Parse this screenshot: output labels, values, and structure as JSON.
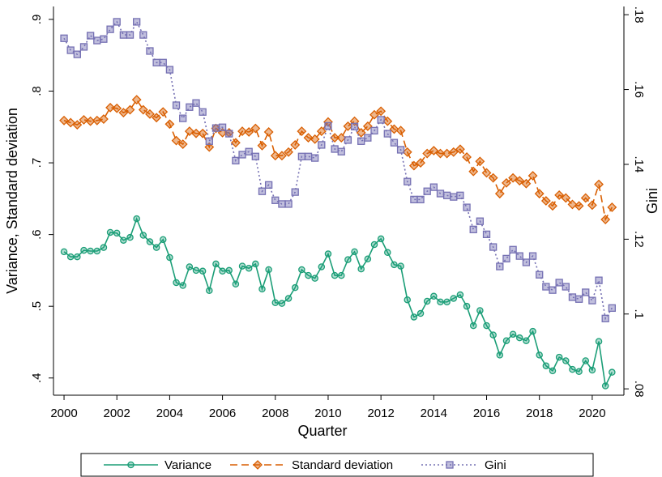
{
  "chart_data": {
    "type": "line",
    "x_label": "Quarter",
    "y_label": "Variance, Standard deviation",
    "y2_label": "Gini",
    "x": [
      2000,
      2000.25,
      2000.5,
      2000.75,
      2001,
      2001.25,
      2001.5,
      2001.75,
      2002,
      2002.25,
      2002.5,
      2002.75,
      2003,
      2003.25,
      2003.5,
      2003.75,
      2004,
      2004.25,
      2004.5,
      2004.75,
      2005,
      2005.25,
      2005.5,
      2005.75,
      2006,
      2006.25,
      2006.5,
      2006.75,
      2007,
      2007.25,
      2007.5,
      2007.75,
      2008,
      2008.25,
      2008.5,
      2008.75,
      2009,
      2009.25,
      2009.5,
      2009.75,
      2010,
      2010.25,
      2010.5,
      2010.75,
      2011,
      2011.25,
      2011.5,
      2011.75,
      2012,
      2012.25,
      2012.5,
      2012.75,
      2013,
      2013.25,
      2013.5,
      2013.75,
      2014,
      2014.25,
      2014.5,
      2014.75,
      2015,
      2015.25,
      2015.5,
      2015.75,
      2016,
      2016.25,
      2016.5,
      2016.75,
      2017,
      2017.25,
      2017.5,
      2017.75,
      2018,
      2018.25,
      2018.5,
      2018.75,
      2019,
      2019.25,
      2019.5,
      2019.75,
      2020,
      2020.25,
      2020.5,
      2020.75
    ],
    "series": [
      {
        "name": "Variance",
        "color": "#1b9e77",
        "marker": "circle",
        "dash": "solid",
        "values": [
          0.576,
          0.569,
          0.569,
          0.578,
          0.577,
          0.577,
          0.582,
          0.603,
          0.602,
          0.592,
          0.596,
          0.622,
          0.599,
          0.59,
          0.582,
          0.593,
          0.568,
          0.533,
          0.529,
          0.555,
          0.55,
          0.549,
          0.522,
          0.559,
          0.549,
          0.55,
          0.531,
          0.556,
          0.553,
          0.559,
          0.524,
          0.551,
          0.505,
          0.504,
          0.511,
          0.526,
          0.551,
          0.543,
          0.539,
          0.555,
          0.573,
          0.543,
          0.543,
          0.565,
          0.576,
          0.552,
          0.566,
          0.586,
          0.594,
          0.575,
          0.558,
          0.556,
          0.509,
          0.485,
          0.49,
          0.507,
          0.514,
          0.506,
          0.506,
          0.511,
          0.516,
          0.5,
          0.473,
          0.494,
          0.473,
          0.46,
          0.432,
          0.452,
          0.461,
          0.456,
          0.452,
          0.465,
          0.432,
          0.417,
          0.41,
          0.429,
          0.424,
          0.412,
          0.409,
          0.424,
          0.411,
          0.451,
          0.389,
          0.408
        ]
      },
      {
        "name": "Standard deviation",
        "color": "#d95f02",
        "marker": "diamond",
        "dash": "dashed",
        "values": [
          0.759,
          0.756,
          0.753,
          0.76,
          0.758,
          0.759,
          0.761,
          0.777,
          0.776,
          0.77,
          0.774,
          0.788,
          0.774,
          0.768,
          0.763,
          0.771,
          0.754,
          0.731,
          0.726,
          0.744,
          0.741,
          0.741,
          0.722,
          0.748,
          0.742,
          0.742,
          0.728,
          0.744,
          0.743,
          0.748,
          0.724,
          0.743,
          0.71,
          0.71,
          0.715,
          0.725,
          0.744,
          0.735,
          0.733,
          0.744,
          0.757,
          0.735,
          0.735,
          0.751,
          0.758,
          0.742,
          0.751,
          0.767,
          0.772,
          0.758,
          0.747,
          0.745,
          0.715,
          0.696,
          0.7,
          0.713,
          0.717,
          0.713,
          0.713,
          0.715,
          0.719,
          0.708,
          0.688,
          0.702,
          0.686,
          0.679,
          0.657,
          0.672,
          0.679,
          0.675,
          0.671,
          0.682,
          0.657,
          0.647,
          0.64,
          0.655,
          0.651,
          0.642,
          0.64,
          0.651,
          0.641,
          0.67,
          0.621,
          0.638
        ]
      },
      {
        "name": "Gini",
        "color": "#7570b3",
        "marker": "square",
        "dash": "dotted",
        "axis": "y2",
        "values": [
          0.1737,
          0.1705,
          0.1694,
          0.1714,
          0.1744,
          0.1731,
          0.1735,
          0.1761,
          0.1781,
          0.1746,
          0.1746,
          0.1781,
          0.1746,
          0.1703,
          0.1672,
          0.1672,
          0.1653,
          0.1558,
          0.1523,
          0.1553,
          0.1564,
          0.154,
          0.1462,
          0.1497,
          0.1499,
          0.1482,
          0.141,
          0.1426,
          0.1434,
          0.1421,
          0.1328,
          0.1345,
          0.1304,
          0.1294,
          0.1294,
          0.1326,
          0.1421,
          0.1421,
          0.1417,
          0.1452,
          0.1503,
          0.1441,
          0.1434,
          0.1465,
          0.1501,
          0.1462,
          0.1471,
          0.149,
          0.1519,
          0.1482,
          0.1458,
          0.1439,
          0.1354,
          0.1306,
          0.1306,
          0.1328,
          0.1339,
          0.1322,
          0.1317,
          0.1313,
          0.1317,
          0.1285,
          0.1226,
          0.1248,
          0.1213,
          0.1179,
          0.1127,
          0.1148,
          0.1172,
          0.1155,
          0.1138,
          0.1155,
          0.1105,
          0.1073,
          0.1064,
          0.1084,
          0.1073,
          0.1045,
          0.104,
          0.1058,
          0.1036,
          0.109,
          0.0988,
          0.1016
        ]
      }
    ],
    "xlim": [
      1999.6,
      2021.2
    ],
    "xticks": [
      2000,
      2002,
      2004,
      2006,
      2008,
      2010,
      2012,
      2014,
      2016,
      2018,
      2020
    ],
    "ylim": [
      0.376,
      0.918
    ],
    "yticks": [
      {
        "value": 0.4,
        "label": ".4"
      },
      {
        "value": 0.5,
        "label": ".5"
      },
      {
        "value": 0.6,
        "label": ".6"
      },
      {
        "value": 0.7,
        "label": ".7"
      },
      {
        "value": 0.8,
        "label": ".8"
      },
      {
        "value": 0.9,
        "label": ".9"
      }
    ],
    "y2lim": [
      0.0783,
      0.1822
    ],
    "y2ticks": [
      {
        "value": 0.08,
        "label": ".08"
      },
      {
        "value": 0.1,
        "label": ".1"
      },
      {
        "value": 0.12,
        "label": ".12"
      },
      {
        "value": 0.14,
        "label": ".14"
      },
      {
        "value": 0.16,
        "label": ".16"
      },
      {
        "value": 0.18,
        "label": ".18"
      }
    ],
    "grid": false,
    "legend": "bottom"
  }
}
